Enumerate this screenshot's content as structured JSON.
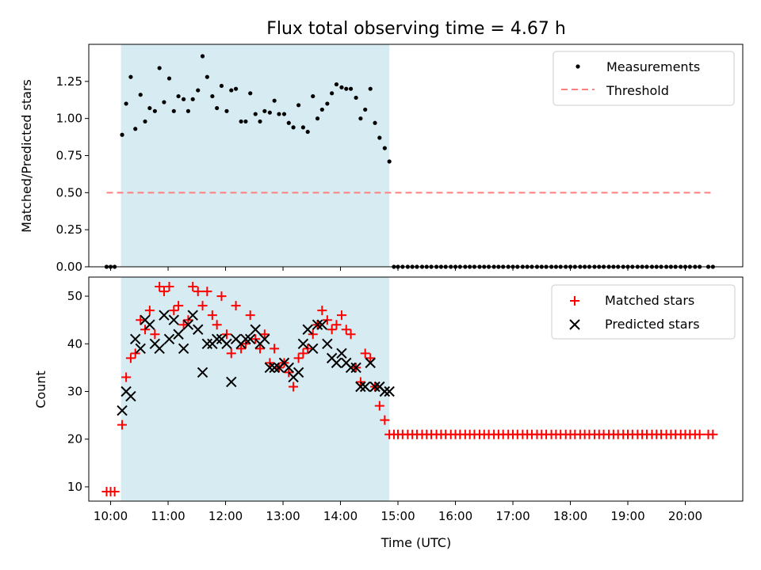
{
  "chart_data": [
    {
      "type": "scatter",
      "title": "Flux total observing time = 4.67 h",
      "xlabel": "",
      "ylabel": "Matched/Predicted stars",
      "xlim": [
        9.62,
        21.0
      ],
      "ylim": [
        0,
        1.5
      ],
      "yticks": [
        0,
        0.25,
        0.5,
        0.75,
        1.0,
        1.25
      ],
      "ytick_labels": [
        "0.00",
        "0.25",
        "0.50",
        "0.75",
        "1.00",
        "1.25"
      ],
      "shaded_region": [
        10.18,
        14.85
      ],
      "legend_position": "top-right",
      "legend": [
        "Measurements",
        "Threshold"
      ],
      "series": [
        {
          "name": "Measurements",
          "marker": "dot",
          "color": "#000000",
          "x": [
            9.93,
            10.0,
            10.07,
            10.2,
            10.27,
            10.35,
            10.43,
            10.52,
            10.6,
            10.68,
            10.77,
            10.85,
            10.93,
            11.02,
            11.1,
            11.18,
            11.27,
            11.35,
            11.43,
            11.52,
            11.6,
            11.68,
            11.77,
            11.85,
            11.93,
            12.02,
            12.1,
            12.18,
            12.27,
            12.35,
            12.43,
            12.52,
            12.6,
            12.68,
            12.77,
            12.85,
            12.93,
            13.02,
            13.1,
            13.18,
            13.27,
            13.35,
            13.43,
            13.52,
            13.6,
            13.68,
            13.77,
            13.85,
            13.93,
            14.02,
            14.1,
            14.18,
            14.27,
            14.35,
            14.43,
            14.52,
            14.6,
            14.68,
            14.77,
            14.85,
            14.93,
            15.0,
            15.08,
            15.17,
            15.25,
            15.33,
            15.42,
            15.5,
            15.58,
            15.67,
            15.75,
            15.83,
            15.92,
            16.0,
            16.08,
            16.17,
            16.25,
            16.33,
            16.42,
            16.5,
            16.58,
            16.67,
            16.75,
            16.83,
            16.92,
            17.0,
            17.08,
            17.17,
            17.25,
            17.33,
            17.42,
            17.5,
            17.58,
            17.67,
            17.75,
            17.83,
            17.92,
            18.0,
            18.08,
            18.17,
            18.25,
            18.33,
            18.42,
            18.5,
            18.58,
            18.67,
            18.75,
            18.83,
            18.92,
            19.0,
            19.08,
            19.17,
            19.25,
            19.33,
            19.42,
            19.5,
            19.58,
            19.67,
            19.75,
            19.83,
            19.92,
            20.0,
            20.08,
            20.17,
            20.25,
            20.4,
            20.48
          ],
          "y": [
            0,
            0,
            0,
            0.89,
            1.1,
            1.28,
            0.93,
            1.16,
            0.98,
            1.07,
            1.05,
            1.34,
            1.11,
            1.27,
            1.05,
            1.15,
            1.13,
            1.05,
            1.13,
            1.19,
            1.42,
            1.28,
            1.15,
            1.07,
            1.22,
            1.05,
            1.19,
            1.2,
            0.98,
            0.98,
            1.17,
            1.03,
            0.98,
            1.05,
            1.04,
            1.12,
            1.03,
            1.03,
            0.97,
            0.94,
            1.09,
            0.94,
            0.91,
            1.15,
            1.0,
            1.06,
            1.1,
            1.17,
            1.23,
            1.21,
            1.2,
            1.2,
            1.14,
            1.0,
            1.06,
            1.2,
            0.97,
            0.87,
            0.8,
            0.71,
            0,
            0,
            0,
            0,
            0,
            0,
            0,
            0,
            0,
            0,
            0,
            0,
            0,
            0,
            0,
            0,
            0,
            0,
            0,
            0,
            0,
            0,
            0,
            0,
            0,
            0,
            0,
            0,
            0,
            0,
            0,
            0,
            0,
            0,
            0,
            0,
            0,
            0,
            0,
            0,
            0,
            0,
            0,
            0,
            0,
            0,
            0,
            0,
            0,
            0,
            0,
            0,
            0,
            0,
            0,
            0,
            0,
            0,
            0,
            0,
            0,
            0,
            0,
            0,
            0,
            0,
            0
          ]
        },
        {
          "name": "Threshold",
          "style": "dashed",
          "color": "#ff7f7f",
          "x": [
            9.93,
            20.48
          ],
          "y": [
            0.5,
            0.5
          ]
        }
      ]
    },
    {
      "type": "scatter",
      "title": "",
      "xlabel": "Time (UTC)",
      "ylabel": "Count",
      "xlim": [
        9.62,
        21.0
      ],
      "ylim": [
        7,
        54
      ],
      "yticks": [
        10,
        20,
        30,
        40,
        50
      ],
      "ytick_labels": [
        "10",
        "20",
        "30",
        "40",
        "50"
      ],
      "xticks": [
        10,
        11,
        12,
        13,
        14,
        15,
        16,
        17,
        18,
        19,
        20
      ],
      "xtick_labels": [
        "10:00",
        "11:00",
        "12:00",
        "13:00",
        "14:00",
        "15:00",
        "16:00",
        "17:00",
        "18:00",
        "19:00",
        "20:00"
      ],
      "shaded_region": [
        10.18,
        14.85
      ],
      "legend_position": "top-right",
      "legend": [
        "Matched stars",
        "Predicted stars"
      ],
      "series": [
        {
          "name": "Matched stars",
          "marker": "plus",
          "color": "#ff0000",
          "x": [
            9.93,
            10.0,
            10.07,
            10.2,
            10.27,
            10.35,
            10.43,
            10.52,
            10.6,
            10.68,
            10.77,
            10.85,
            10.93,
            11.02,
            11.1,
            11.18,
            11.27,
            11.35,
            11.43,
            11.52,
            11.6,
            11.68,
            11.77,
            11.85,
            11.93,
            12.02,
            12.1,
            12.18,
            12.27,
            12.35,
            12.43,
            12.52,
            12.6,
            12.68,
            12.77,
            12.85,
            12.93,
            13.02,
            13.1,
            13.18,
            13.27,
            13.35,
            13.43,
            13.52,
            13.6,
            13.68,
            13.77,
            13.85,
            13.93,
            14.02,
            14.1,
            14.18,
            14.27,
            14.35,
            14.43,
            14.52,
            14.6,
            14.68,
            14.77,
            14.85,
            14.93,
            15.0,
            15.08,
            15.17,
            15.25,
            15.33,
            15.42,
            15.5,
            15.58,
            15.67,
            15.75,
            15.83,
            15.92,
            16.0,
            16.08,
            16.17,
            16.25,
            16.33,
            16.42,
            16.5,
            16.58,
            16.67,
            16.75,
            16.83,
            16.92,
            17.0,
            17.08,
            17.17,
            17.25,
            17.33,
            17.42,
            17.5,
            17.58,
            17.67,
            17.75,
            17.83,
            17.92,
            18.0,
            18.08,
            18.17,
            18.25,
            18.33,
            18.42,
            18.5,
            18.58,
            18.67,
            18.75,
            18.83,
            18.92,
            19.0,
            19.08,
            19.17,
            19.25,
            19.33,
            19.42,
            19.5,
            19.58,
            19.67,
            19.75,
            19.83,
            19.92,
            20.0,
            20.08,
            20.17,
            20.25,
            20.4,
            20.48
          ],
          "y": [
            9,
            9,
            9,
            23,
            33,
            37,
            38,
            45,
            43,
            47,
            42,
            52,
            51,
            52,
            47,
            48,
            44,
            45,
            52,
            51,
            48,
            51,
            46,
            44,
            50,
            42,
            38,
            48,
            39,
            40,
            46,
            41,
            39,
            42,
            36,
            39,
            35,
            36,
            34,
            31,
            37,
            38,
            39,
            42,
            44,
            47,
            45,
            43,
            44,
            46,
            43,
            42,
            35,
            32,
            38,
            37,
            31,
            27,
            24,
            21,
            21,
            21,
            21,
            21,
            21,
            21,
            21,
            21,
            21,
            21,
            21,
            21,
            21,
            21,
            21,
            21,
            21,
            21,
            21,
            21,
            21,
            21,
            21,
            21,
            21,
            21,
            21,
            21,
            21,
            21,
            21,
            21,
            21,
            21,
            21,
            21,
            21,
            21,
            21,
            21,
            21,
            21,
            21,
            21,
            21,
            21,
            21,
            21,
            21,
            21,
            21,
            21,
            21,
            21,
            21,
            21,
            21,
            21,
            21,
            21,
            21,
            21,
            21,
            21,
            21,
            21,
            21
          ]
        },
        {
          "name": "Predicted stars",
          "marker": "x",
          "color": "#000000",
          "x": [
            10.2,
            10.27,
            10.35,
            10.43,
            10.52,
            10.6,
            10.68,
            10.77,
            10.85,
            10.93,
            11.02,
            11.1,
            11.18,
            11.27,
            11.35,
            11.43,
            11.52,
            11.6,
            11.68,
            11.77,
            11.85,
            11.93,
            12.02,
            12.1,
            12.18,
            12.27,
            12.35,
            12.43,
            12.52,
            12.6,
            12.68,
            12.77,
            12.85,
            12.93,
            13.02,
            13.1,
            13.18,
            13.27,
            13.35,
            13.43,
            13.52,
            13.6,
            13.68,
            13.77,
            13.85,
            13.93,
            14.02,
            14.1,
            14.18,
            14.27,
            14.35,
            14.43,
            14.52,
            14.6,
            14.68,
            14.77,
            14.85
          ],
          "y": [
            26,
            30,
            29,
            41,
            39,
            45,
            44,
            40,
            39,
            46,
            41,
            45,
            42,
            39,
            44,
            46,
            43,
            34,
            40,
            40,
            41,
            41,
            40,
            32,
            41,
            40,
            41,
            41,
            43,
            40,
            41,
            35,
            35,
            35,
            36,
            35,
            33,
            34,
            40,
            43,
            39,
            44,
            44,
            40,
            37,
            36,
            38,
            36,
            35,
            35,
            31,
            31,
            36,
            31,
            31,
            30,
            30
          ]
        }
      ]
    }
  ]
}
